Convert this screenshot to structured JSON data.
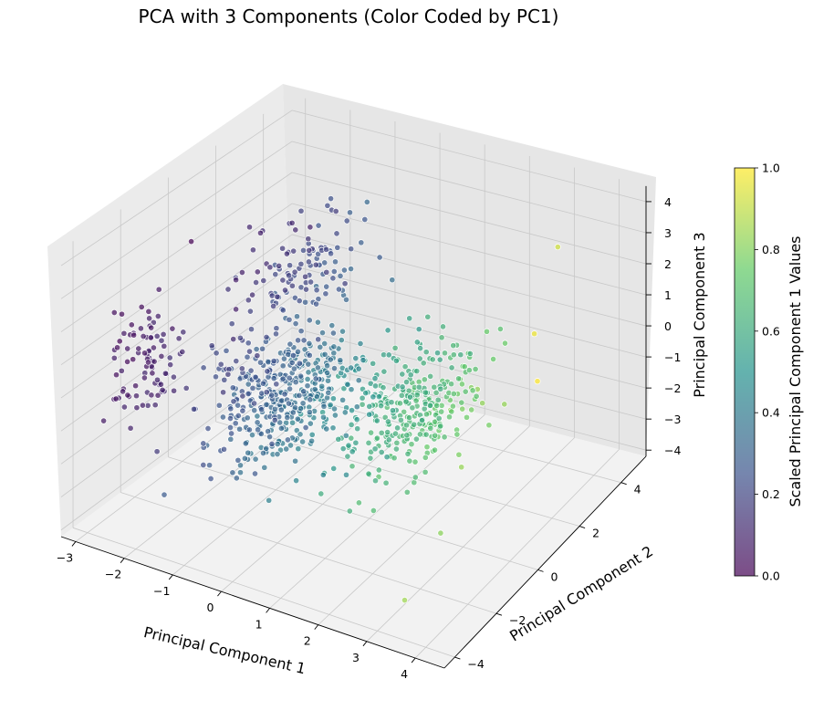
{
  "chart_data": {
    "type": "scatter",
    "projection": "3d",
    "title": "PCA with 3 Components (Color Coded by PC1)",
    "xlabel": "Principal Component 1",
    "ylabel": "Principal Component 2",
    "zlabel": "Principal Component 3",
    "xlim": [
      -3.3,
      4.6
    ],
    "ylim": [
      -4.5,
      5.2
    ],
    "zlim": [
      -4.2,
      4.5
    ],
    "xticks": [
      "−3",
      "−2",
      "−1",
      "0",
      "1",
      "2",
      "3",
      "4"
    ],
    "yticks": [
      "−4",
      "−2",
      "0",
      "2",
      "4"
    ],
    "zticks": [
      "−4",
      "−3",
      "−2",
      "−1",
      "0",
      "1",
      "2",
      "3",
      "4"
    ],
    "grid": true,
    "colormap": "viridis",
    "colorbar": {
      "label": "Scaled Principal Component 1 Values",
      "range": [
        0.0,
        1.0
      ],
      "ticks": [
        "0.0",
        "0.2",
        "0.4",
        "0.6",
        "0.8",
        "1.0"
      ],
      "stops": [
        "#440154",
        "#3b528b",
        "#21918c",
        "#5ec962",
        "#fde725"
      ]
    },
    "marker": {
      "edgecolor": "#ffffff",
      "alpha": 0.7
    },
    "clusters": [
      {
        "name_ref": "cluster-a",
        "n": 90,
        "center": [
          -2.7,
          -2.2,
          0.2
        ],
        "spread": [
          0.25,
          0.6,
          0.8
        ]
      },
      {
        "name_ref": "cluster-b",
        "n": 120,
        "center": [
          -1.6,
          2.5,
          1.0
        ],
        "spread": [
          0.5,
          1.0,
          0.7
        ]
      },
      {
        "name_ref": "cluster-c",
        "n": 420,
        "center": [
          -0.8,
          -0.2,
          -1.0
        ],
        "spread": [
          0.55,
          1.1,
          0.9
        ]
      },
      {
        "name_ref": "cluster-d",
        "n": 320,
        "center": [
          1.7,
          0.3,
          -0.7
        ],
        "spread": [
          0.55,
          1.1,
          0.8
        ]
      }
    ],
    "outliers": [
      {
        "x": 3.9,
        "y": 2.5,
        "z": 4.0
      },
      {
        "x": 4.3,
        "y": 0.5,
        "z": 2.7
      },
      {
        "x": 4.5,
        "y": 0.2,
        "z": 1.5
      },
      {
        "x": 3.3,
        "y": -3.4,
        "z": -3.5
      }
    ]
  }
}
